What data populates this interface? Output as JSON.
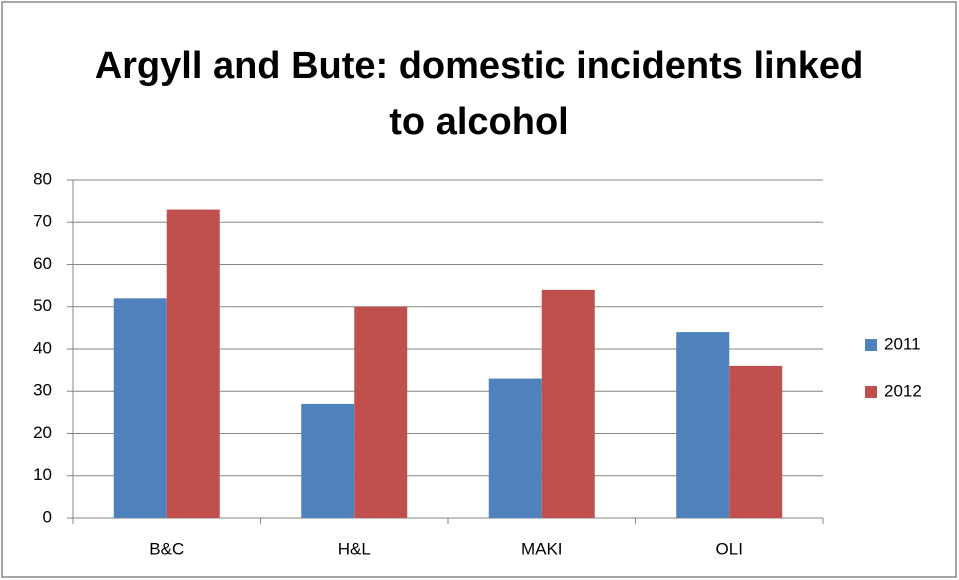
{
  "chart_data": {
    "type": "bar",
    "title": "Argyll and Bute: domestic incidents linked to alcohol",
    "categories": [
      "B&C",
      "H&L",
      "MAKI",
      "OLI"
    ],
    "series": [
      {
        "name": "2011",
        "color": "#4f81bd",
        "values": [
          52,
          27,
          33,
          44
        ]
      },
      {
        "name": "2012",
        "color": "#c0504d",
        "values": [
          73,
          50,
          54,
          36
        ]
      }
    ],
    "ylim": [
      0,
      80
    ],
    "yticks": [
      0,
      10,
      20,
      30,
      40,
      50,
      60,
      70,
      80
    ],
    "grid": true,
    "legend": "right"
  }
}
